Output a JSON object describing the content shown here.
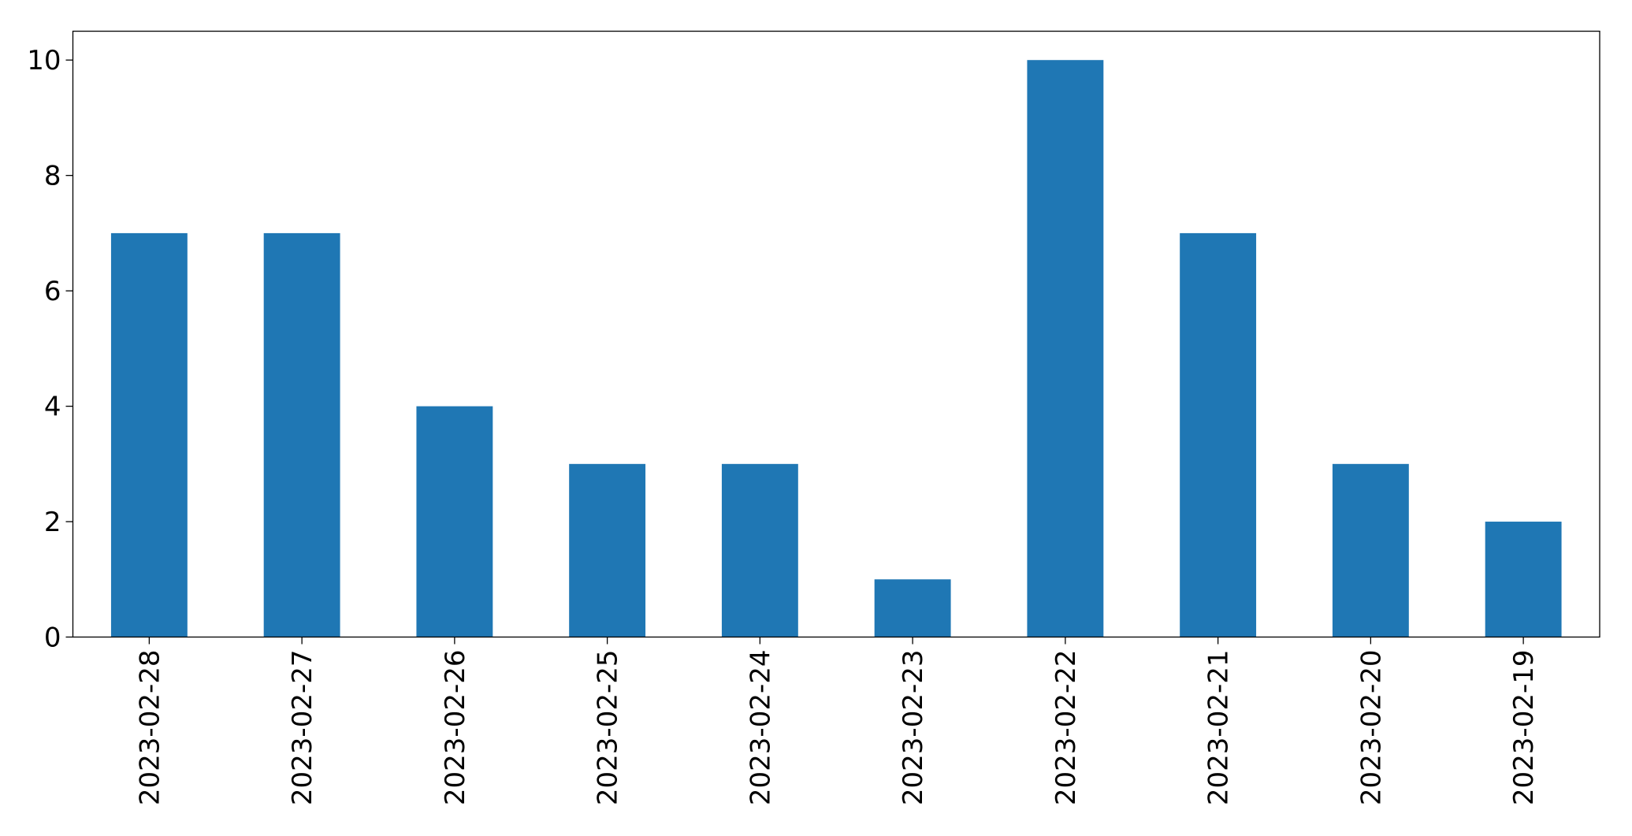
{
  "chart_data": {
    "type": "bar",
    "categories": [
      "2023-02-28",
      "2023-02-27",
      "2023-02-26",
      "2023-02-25",
      "2023-02-24",
      "2023-02-23",
      "2023-02-22",
      "2023-02-21",
      "2023-02-20",
      "2023-02-19"
    ],
    "values": [
      7,
      7,
      4,
      3,
      3,
      1,
      10,
      7,
      3,
      2
    ],
    "color": "#1f77b4",
    "ylim": [
      0,
      10.5
    ],
    "yticks": [
      0,
      2,
      4,
      6,
      8,
      10
    ],
    "grid": false
  }
}
